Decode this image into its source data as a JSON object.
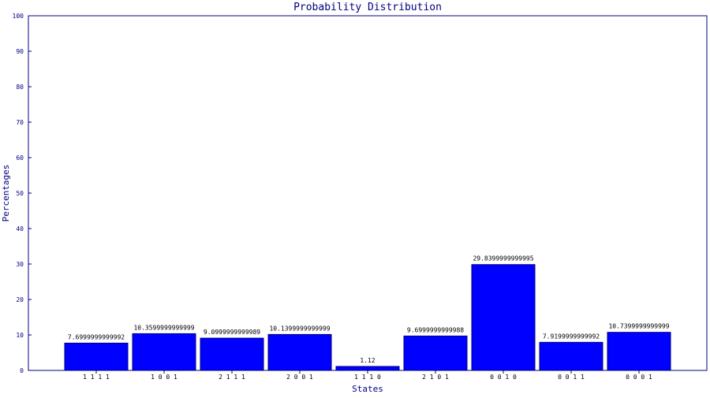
{
  "chart_data": {
    "type": "bar",
    "title": "Probability Distribution",
    "xlabel": "States",
    "ylabel": "Percentages",
    "ylim": [
      0,
      100
    ],
    "yticks": [
      0,
      10,
      20,
      30,
      40,
      50,
      60,
      70,
      80,
      90,
      100
    ],
    "categories": [
      "1 1 1 1",
      "1 0 0 1",
      "2 1 1 1",
      "2 0 0 1",
      "1 1 1 0",
      "2 1 0 1",
      "0 0 1 0",
      "0 0 1 1",
      "0 0 0 1"
    ],
    "values": [
      7.6999999999992,
      10.3599999999999,
      9.0999999999989,
      10.1399999999999,
      1.12,
      9.6999999999988,
      29.8399999999995,
      7.9199999999992,
      10.7399999999999
    ],
    "value_labels": [
      "7.6999999999992",
      "10.3599999999999",
      "9.0999999999989",
      "10.1399999999999",
      "1.12",
      "9.6999999999988",
      "29.8399999999995",
      "7.9199999999992",
      "10.7399999999999"
    ],
    "grid": false,
    "colors": {
      "bar": "#0000ff",
      "axis": "#000080",
      "text": "#000080",
      "label_text": "#000000"
    }
  }
}
